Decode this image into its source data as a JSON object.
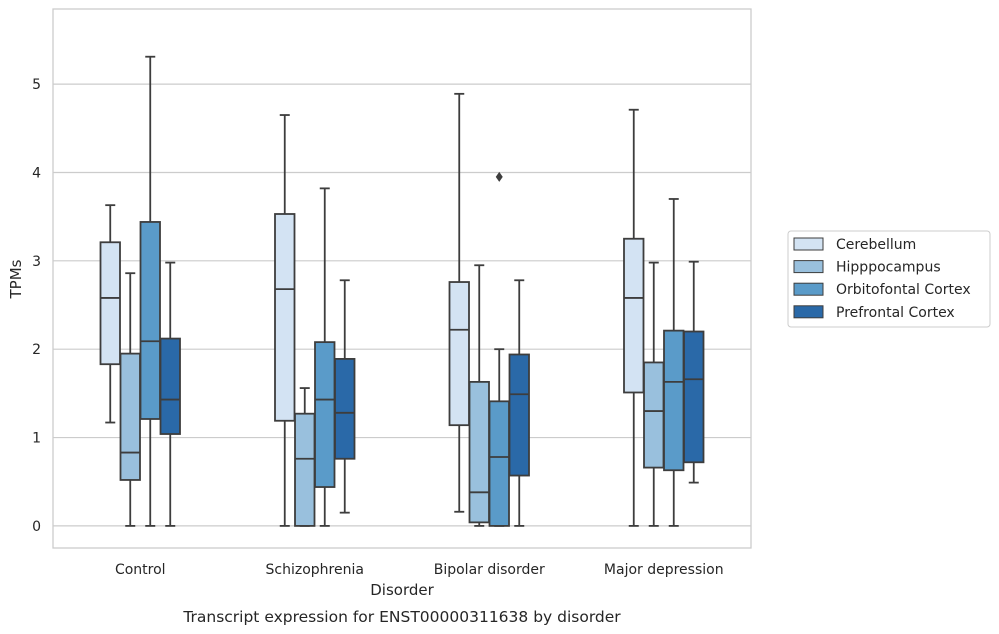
{
  "chart_data": {
    "type": "boxplot",
    "caption": "Transcript expression for ENST00000311638 by disorder",
    "xlabel": "Disorder",
    "ylabel": "TPMs",
    "ylim": [
      -0.25,
      5.85
    ],
    "yticks": [
      0,
      1,
      2,
      3,
      4,
      5
    ],
    "categories": [
      "Control",
      "Schizophrenia",
      "Bipolar disorder",
      "Major depression"
    ],
    "grid": "horizontal",
    "legend_position": "right",
    "series": [
      {
        "name": "Cerebellum",
        "color": "#d3e3f3",
        "boxes": [
          {
            "min": 1.17,
            "q1": 1.83,
            "median": 2.58,
            "q3": 3.21,
            "max": 3.63,
            "outliers": []
          },
          {
            "min": 0.0,
            "q1": 1.19,
            "median": 2.68,
            "q3": 3.53,
            "max": 4.65,
            "outliers": []
          },
          {
            "min": 0.16,
            "q1": 1.14,
            "median": 2.22,
            "q3": 2.76,
            "max": 4.89,
            "outliers": []
          },
          {
            "min": 0.0,
            "q1": 1.51,
            "median": 2.58,
            "q3": 3.25,
            "max": 4.71,
            "outliers": []
          }
        ]
      },
      {
        "name": "Hipppocampus",
        "color": "#99c0dd",
        "boxes": [
          {
            "min": 0.0,
            "q1": 0.52,
            "median": 0.83,
            "q3": 1.95,
            "max": 2.86,
            "outliers": []
          },
          {
            "min": 0.0,
            "q1": 0.0,
            "median": 0.76,
            "q3": 1.27,
            "max": 1.56,
            "outliers": []
          },
          {
            "min": 0.0,
            "q1": 0.04,
            "median": 0.38,
            "q3": 1.63,
            "max": 2.95,
            "outliers": []
          },
          {
            "min": 0.0,
            "q1": 0.66,
            "median": 1.3,
            "q3": 1.85,
            "max": 2.98,
            "outliers": []
          }
        ]
      },
      {
        "name": "Orbitofontal Cortex",
        "color": "#5a9bc9",
        "boxes": [
          {
            "min": 0.0,
            "q1": 1.21,
            "median": 2.09,
            "q3": 3.44,
            "max": 5.31,
            "outliers": []
          },
          {
            "min": 0.0,
            "q1": 0.44,
            "median": 1.43,
            "q3": 2.08,
            "max": 3.82,
            "outliers": []
          },
          {
            "min": 0.0,
            "q1": 0.0,
            "median": 0.78,
            "q3": 1.41,
            "max": 2.0,
            "outliers": [
              3.95
            ]
          },
          {
            "min": 0.0,
            "q1": 0.63,
            "median": 1.63,
            "q3": 2.21,
            "max": 3.7,
            "outliers": []
          }
        ]
      },
      {
        "name": "Prefrontal Cortex",
        "color": "#2a69a8",
        "boxes": [
          {
            "min": 0.0,
            "q1": 1.04,
            "median": 1.43,
            "q3": 2.12,
            "max": 2.98,
            "outliers": []
          },
          {
            "min": 0.15,
            "q1": 0.76,
            "median": 1.28,
            "q3": 1.89,
            "max": 2.78,
            "outliers": []
          },
          {
            "min": 0.0,
            "q1": 0.57,
            "median": 1.49,
            "q3": 1.94,
            "max": 2.78,
            "outliers": []
          },
          {
            "min": 0.49,
            "q1": 0.72,
            "median": 1.66,
            "q3": 2.2,
            "max": 2.99,
            "outliers": []
          }
        ]
      }
    ]
  }
}
